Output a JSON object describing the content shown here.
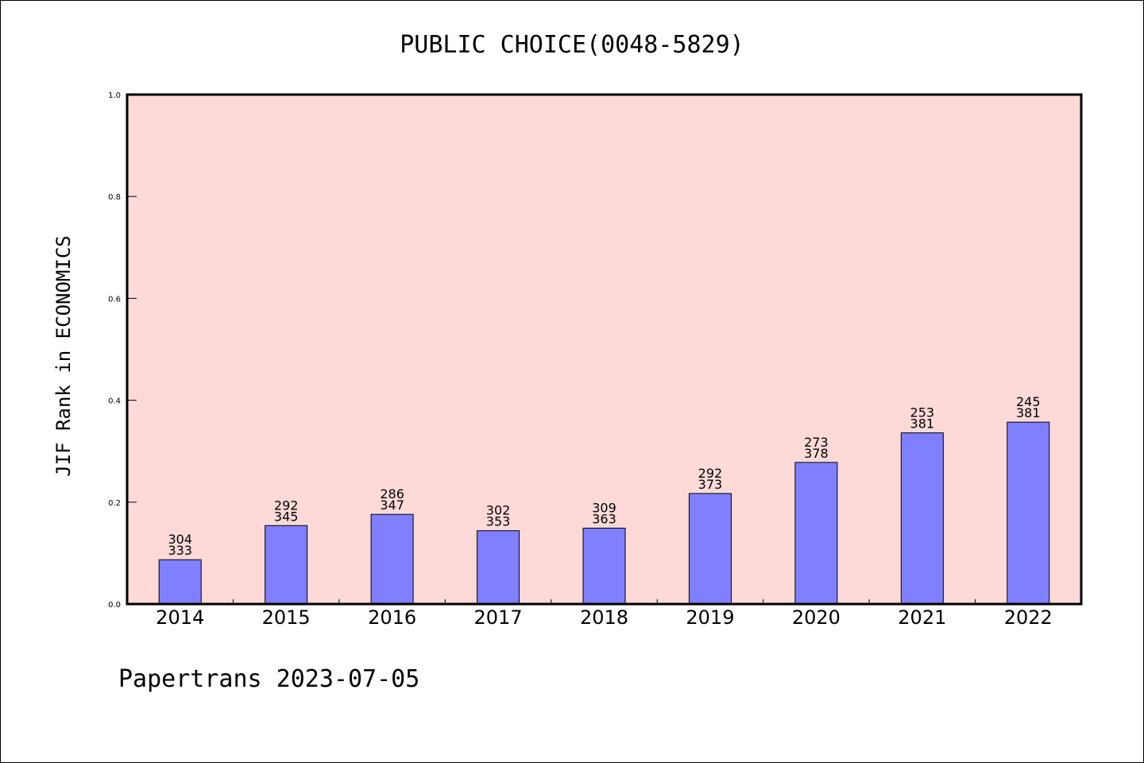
{
  "chart_data": {
    "type": "bar",
    "title": "PUBLIC CHOICE(0048-5829)",
    "xlabel": "",
    "ylabel": "JIF Rank in ECONOMICS",
    "ylim": [
      0.0,
      1.0
    ],
    "yticks": [
      "0.0",
      "0.2",
      "0.4",
      "0.6",
      "0.8",
      "1.0"
    ],
    "categories": [
      "2014",
      "2015",
      "2016",
      "2017",
      "2018",
      "2019",
      "2020",
      "2021",
      "2022"
    ],
    "values": [
      0.087,
      0.154,
      0.176,
      0.144,
      0.149,
      0.217,
      0.278,
      0.336,
      0.357
    ],
    "rank_labels": [
      "304",
      "292",
      "286",
      "302",
      "309",
      "292",
      "273",
      "253",
      "245"
    ],
    "total_labels": [
      "333",
      "345",
      "347",
      "353",
      "363",
      "373",
      "378",
      "381",
      "381"
    ],
    "grid": false,
    "legend": "none",
    "colors": {
      "plot_background": "#fddad7",
      "bar_fill": "#8080ff",
      "bar_edge": "#000000"
    }
  },
  "footer": {
    "text": "Papertrans 2023-07-05"
  }
}
